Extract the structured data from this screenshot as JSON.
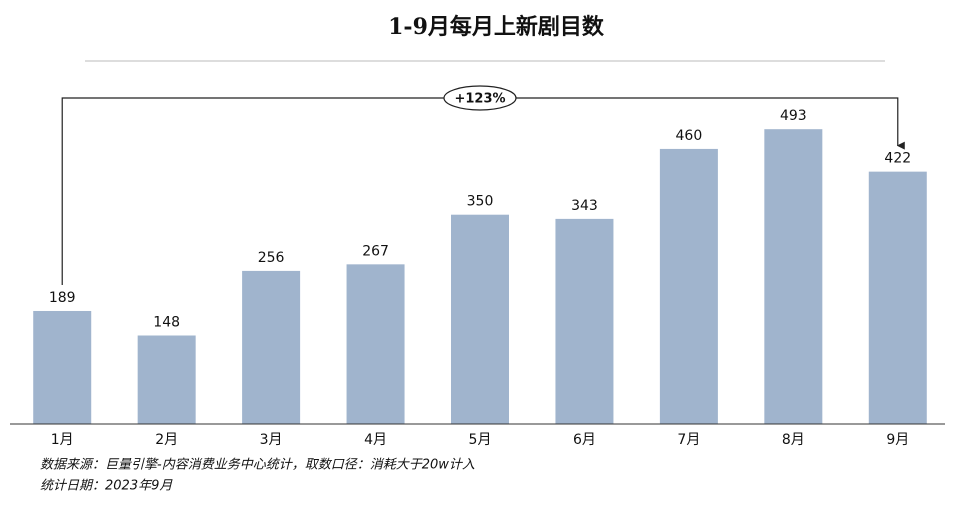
{
  "chart_data": {
    "type": "bar",
    "title": "1-9月每月上新剧目数",
    "categories": [
      "1月",
      "2月",
      "3月",
      "4月",
      "5月",
      "6月",
      "7月",
      "8月",
      "9月"
    ],
    "values": [
      189,
      148,
      256,
      267,
      350,
      343,
      460,
      493,
      422
    ],
    "color": "#a0b4cd",
    "ylim": [
      0,
      500
    ],
    "annotation": "+123%",
    "source_note": "数据来源：巨量引擎-内容消费业务中心统计，取数口径：消耗大于20w计入",
    "date_note": "统计日期：2023年9月"
  }
}
